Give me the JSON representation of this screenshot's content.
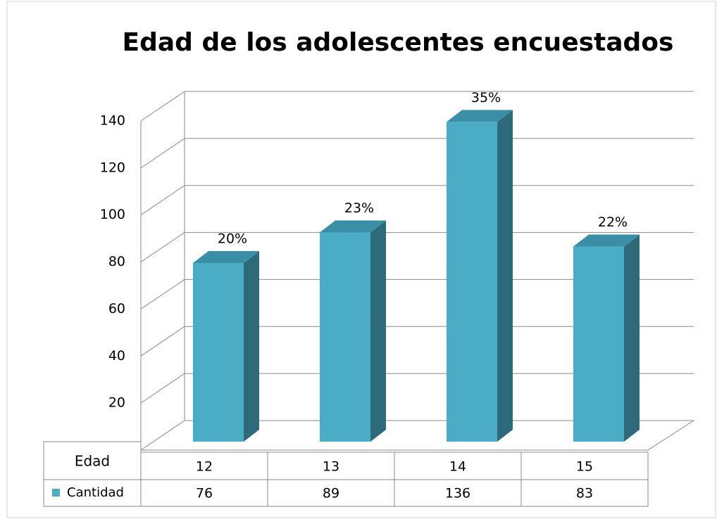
{
  "chart_data": {
    "type": "bar3d",
    "title": "Edad de los adolescentes encuestados",
    "x_label": "Edad",
    "categories": [
      "12",
      "13",
      "14",
      "15"
    ],
    "series": [
      {
        "name": "Cantidad",
        "color": "#4bacc6",
        "values": [
          76,
          89,
          136,
          83
        ]
      }
    ],
    "annotations": [
      "20%",
      "23%",
      "35%",
      "22%"
    ],
    "ylim": [
      0,
      140
    ],
    "yticks": [
      20,
      40,
      60,
      80,
      100,
      120,
      140
    ],
    "grid": true
  }
}
